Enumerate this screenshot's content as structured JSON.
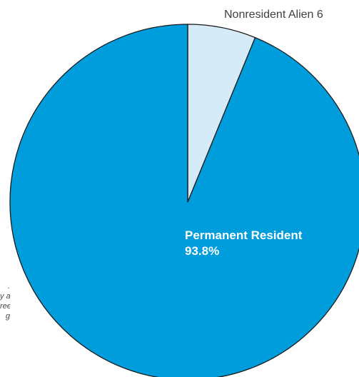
{
  "chart_data": {
    "type": "pie",
    "title": "",
    "slices": [
      {
        "label": "Permanent Resident",
        "value": 93.8,
        "value_text": "93.8%",
        "color": "#009ddc"
      },
      {
        "label": "Nonresident Alien",
        "value": 6.2,
        "value_text": "6",
        "color": "#d6ebf8"
      }
    ],
    "start_angle_deg": 0,
    "direction": "clockwise",
    "stroke_color": "#1a1a1a"
  },
  "side_note": {
    "lines": [
      ".",
      "y and",
      "ree",
      "g"
    ]
  }
}
